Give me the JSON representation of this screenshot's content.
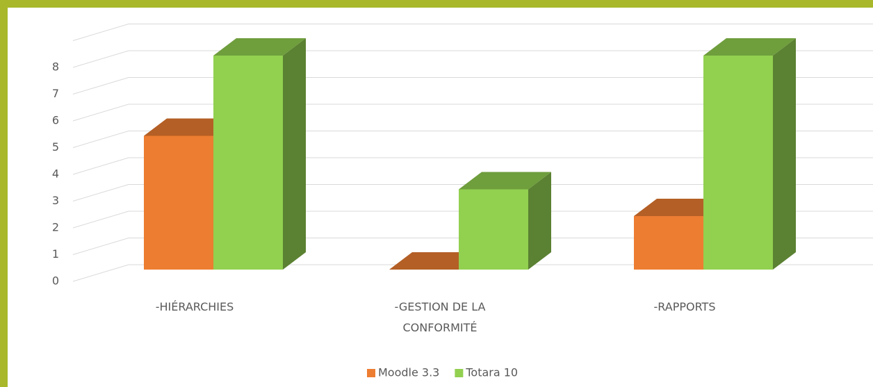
{
  "chart_data": {
    "type": "bar3d",
    "categories": [
      "-HIÉRARCHIES",
      "-GESTION DE LA CONFORMITÉ",
      "-RAPPORTS"
    ],
    "series": [
      {
        "name": "Moodle 3.3",
        "color": "#ed7d31",
        "values": [
          5,
          0,
          2
        ]
      },
      {
        "name": "Totara 10",
        "color": "#92d050",
        "values": [
          8,
          3,
          8
        ]
      }
    ],
    "ylim": [
      0,
      9
    ],
    "yticks": [
      0,
      1,
      2,
      3,
      4,
      5,
      6,
      7,
      8
    ],
    "grid": true,
    "legend": "bottom"
  }
}
